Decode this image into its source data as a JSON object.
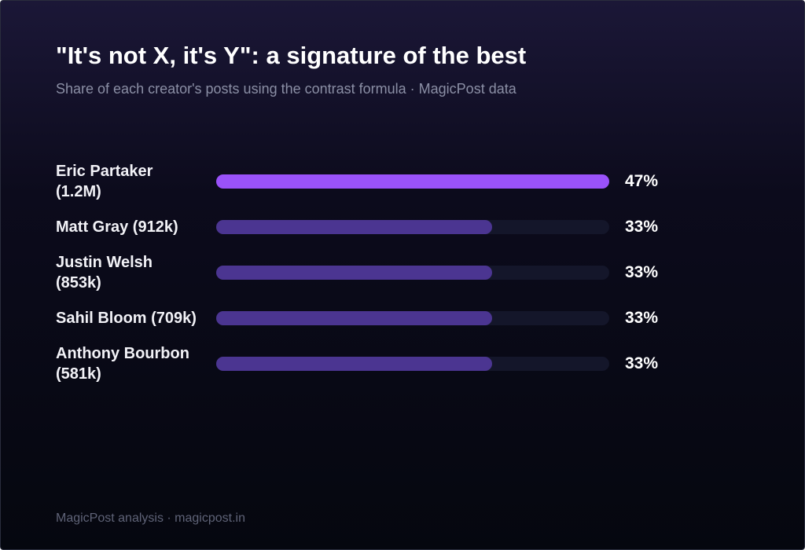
{
  "chart_data": {
    "type": "bar",
    "title": "\"It's not X, it's Y\": a signature of the best",
    "subtitle": "Share of each creator's posts using the contrast formula · MagicPost data",
    "categories": [
      "Eric Partaker (1.2M)",
      "Matt Gray (912k)",
      "Justin Welsh (853k)",
      "Sahil Bloom (709k)",
      "Anthony Bourbon (581k)"
    ],
    "values": [
      47,
      33,
      33,
      33,
      33
    ],
    "value_labels": [
      "47%",
      "33%",
      "33%",
      "33%",
      "33%"
    ],
    "colors": [
      "#9a52fa",
      "#4b3591",
      "#4b3591",
      "#4b3591",
      "#4b3591"
    ],
    "xlim": [
      0,
      47
    ],
    "footer": "MagicPost analysis · magicpost.in"
  }
}
